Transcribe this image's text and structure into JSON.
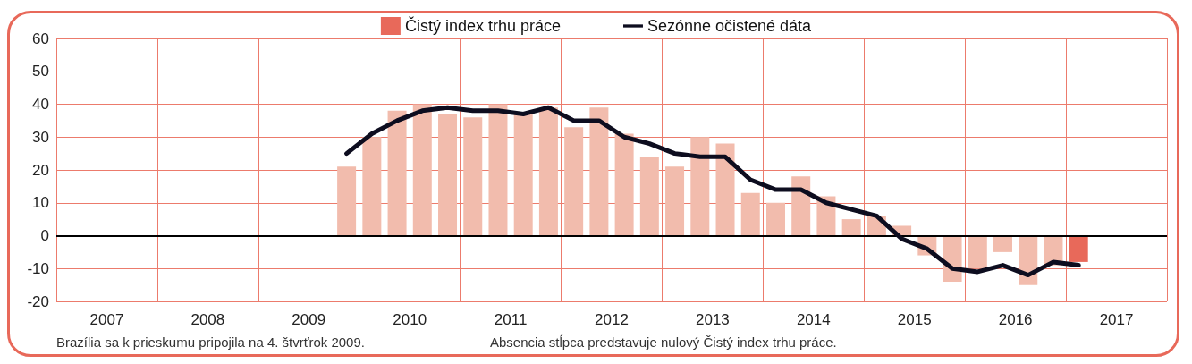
{
  "chart_data": {
    "type": "bar",
    "x": [
      2009.875,
      2010.125,
      2010.375,
      2010.625,
      2010.875,
      2011.125,
      2011.375,
      2011.625,
      2011.875,
      2012.125,
      2012.375,
      2012.625,
      2012.875,
      2013.125,
      2013.375,
      2013.625,
      2013.875,
      2014.125,
      2014.375,
      2014.625,
      2014.875,
      2015.125,
      2015.375,
      2015.625,
      2015.875,
      2016.125,
      2016.375,
      2016.625,
      2016.875,
      2017.125
    ],
    "series": [
      {
        "name": "Čistý index trhu práce",
        "color": "#e8695a",
        "values": [
          21,
          30,
          38,
          40,
          37,
          36,
          40,
          37,
          39,
          33,
          39,
          31,
          24,
          21,
          30,
          28,
          13,
          10,
          18,
          12,
          5,
          6,
          3,
          -6,
          -14,
          -10,
          -5,
          -15,
          -9,
          -8
        ],
        "colors": [
          "#f2bcad",
          "#f2bcad",
          "#f2bcad",
          "#f2bcad",
          "#f2bcad",
          "#f2bcad",
          "#f2bcad",
          "#f2bcad",
          "#f2bcad",
          "#f2bcad",
          "#f2bcad",
          "#f2bcad",
          "#f2bcad",
          "#f2bcad",
          "#f2bcad",
          "#f2bcad",
          "#f2bcad",
          "#f2bcad",
          "#f2bcad",
          "#f2bcad",
          "#f2bcad",
          "#f2bcad",
          "#f2bcad",
          "#f2bcad",
          "#f2bcad",
          "#f2bcad",
          "#f2bcad",
          "#f2bcad",
          "#f2bcad",
          "#e8695a"
        ]
      },
      {
        "name": "Sezónne očistené dáta",
        "type": "line",
        "color": "#0d0d1f",
        "values": [
          25,
          31,
          35,
          38,
          39,
          38,
          38,
          37,
          39,
          35,
          35,
          30,
          28,
          25,
          24,
          24,
          17,
          14,
          14,
          10,
          8,
          6,
          -1,
          -4,
          -10,
          -11,
          -9,
          -12,
          -8,
          -9
        ]
      }
    ],
    "xlim": [
      2007,
      2018
    ],
    "xticks": [
      {
        "value": 2007,
        "label": null
      },
      {
        "value": 2007.5,
        "label": "2007"
      },
      {
        "value": 2008,
        "label": null
      },
      {
        "value": 2008.5,
        "label": "2008"
      },
      {
        "value": 2009,
        "label": null
      },
      {
        "value": 2009.5,
        "label": "2009"
      },
      {
        "value": 2010,
        "label": null
      },
      {
        "value": 2010.5,
        "label": "2010"
      },
      {
        "value": 2011,
        "label": null
      },
      {
        "value": 2011.5,
        "label": "2011"
      },
      {
        "value": 2012,
        "label": null
      },
      {
        "value": 2012.5,
        "label": "2012"
      },
      {
        "value": 2013,
        "label": null
      },
      {
        "value": 2013.5,
        "label": "2013"
      },
      {
        "value": 2014,
        "label": null
      },
      {
        "value": 2014.5,
        "label": "2014"
      },
      {
        "value": 2015,
        "label": null
      },
      {
        "value": 2015.5,
        "label": "2015"
      },
      {
        "value": 2016,
        "label": null
      },
      {
        "value": 2016.5,
        "label": "2016"
      },
      {
        "value": 2017,
        "label": null
      },
      {
        "value": 2017.5,
        "label": "2017"
      },
      {
        "value": 2018,
        "label": null
      }
    ],
    "ylim": [
      -20,
      60
    ],
    "yticks": [
      -20,
      -10,
      0,
      10,
      20,
      30,
      40,
      50,
      60
    ],
    "ref_lines": [
      {
        "axis": "y",
        "value": 0,
        "color": "#000000"
      }
    ],
    "grid": true,
    "legend": "top",
    "marker": "none",
    "line_style": "solid",
    "annotations": [
      "Brazília sa k prieskumu pripojila na 4. štvrťrok 2009.",
      "Absencia stĺpca predstavuje nulový Čistý index trhu práce."
    ]
  }
}
